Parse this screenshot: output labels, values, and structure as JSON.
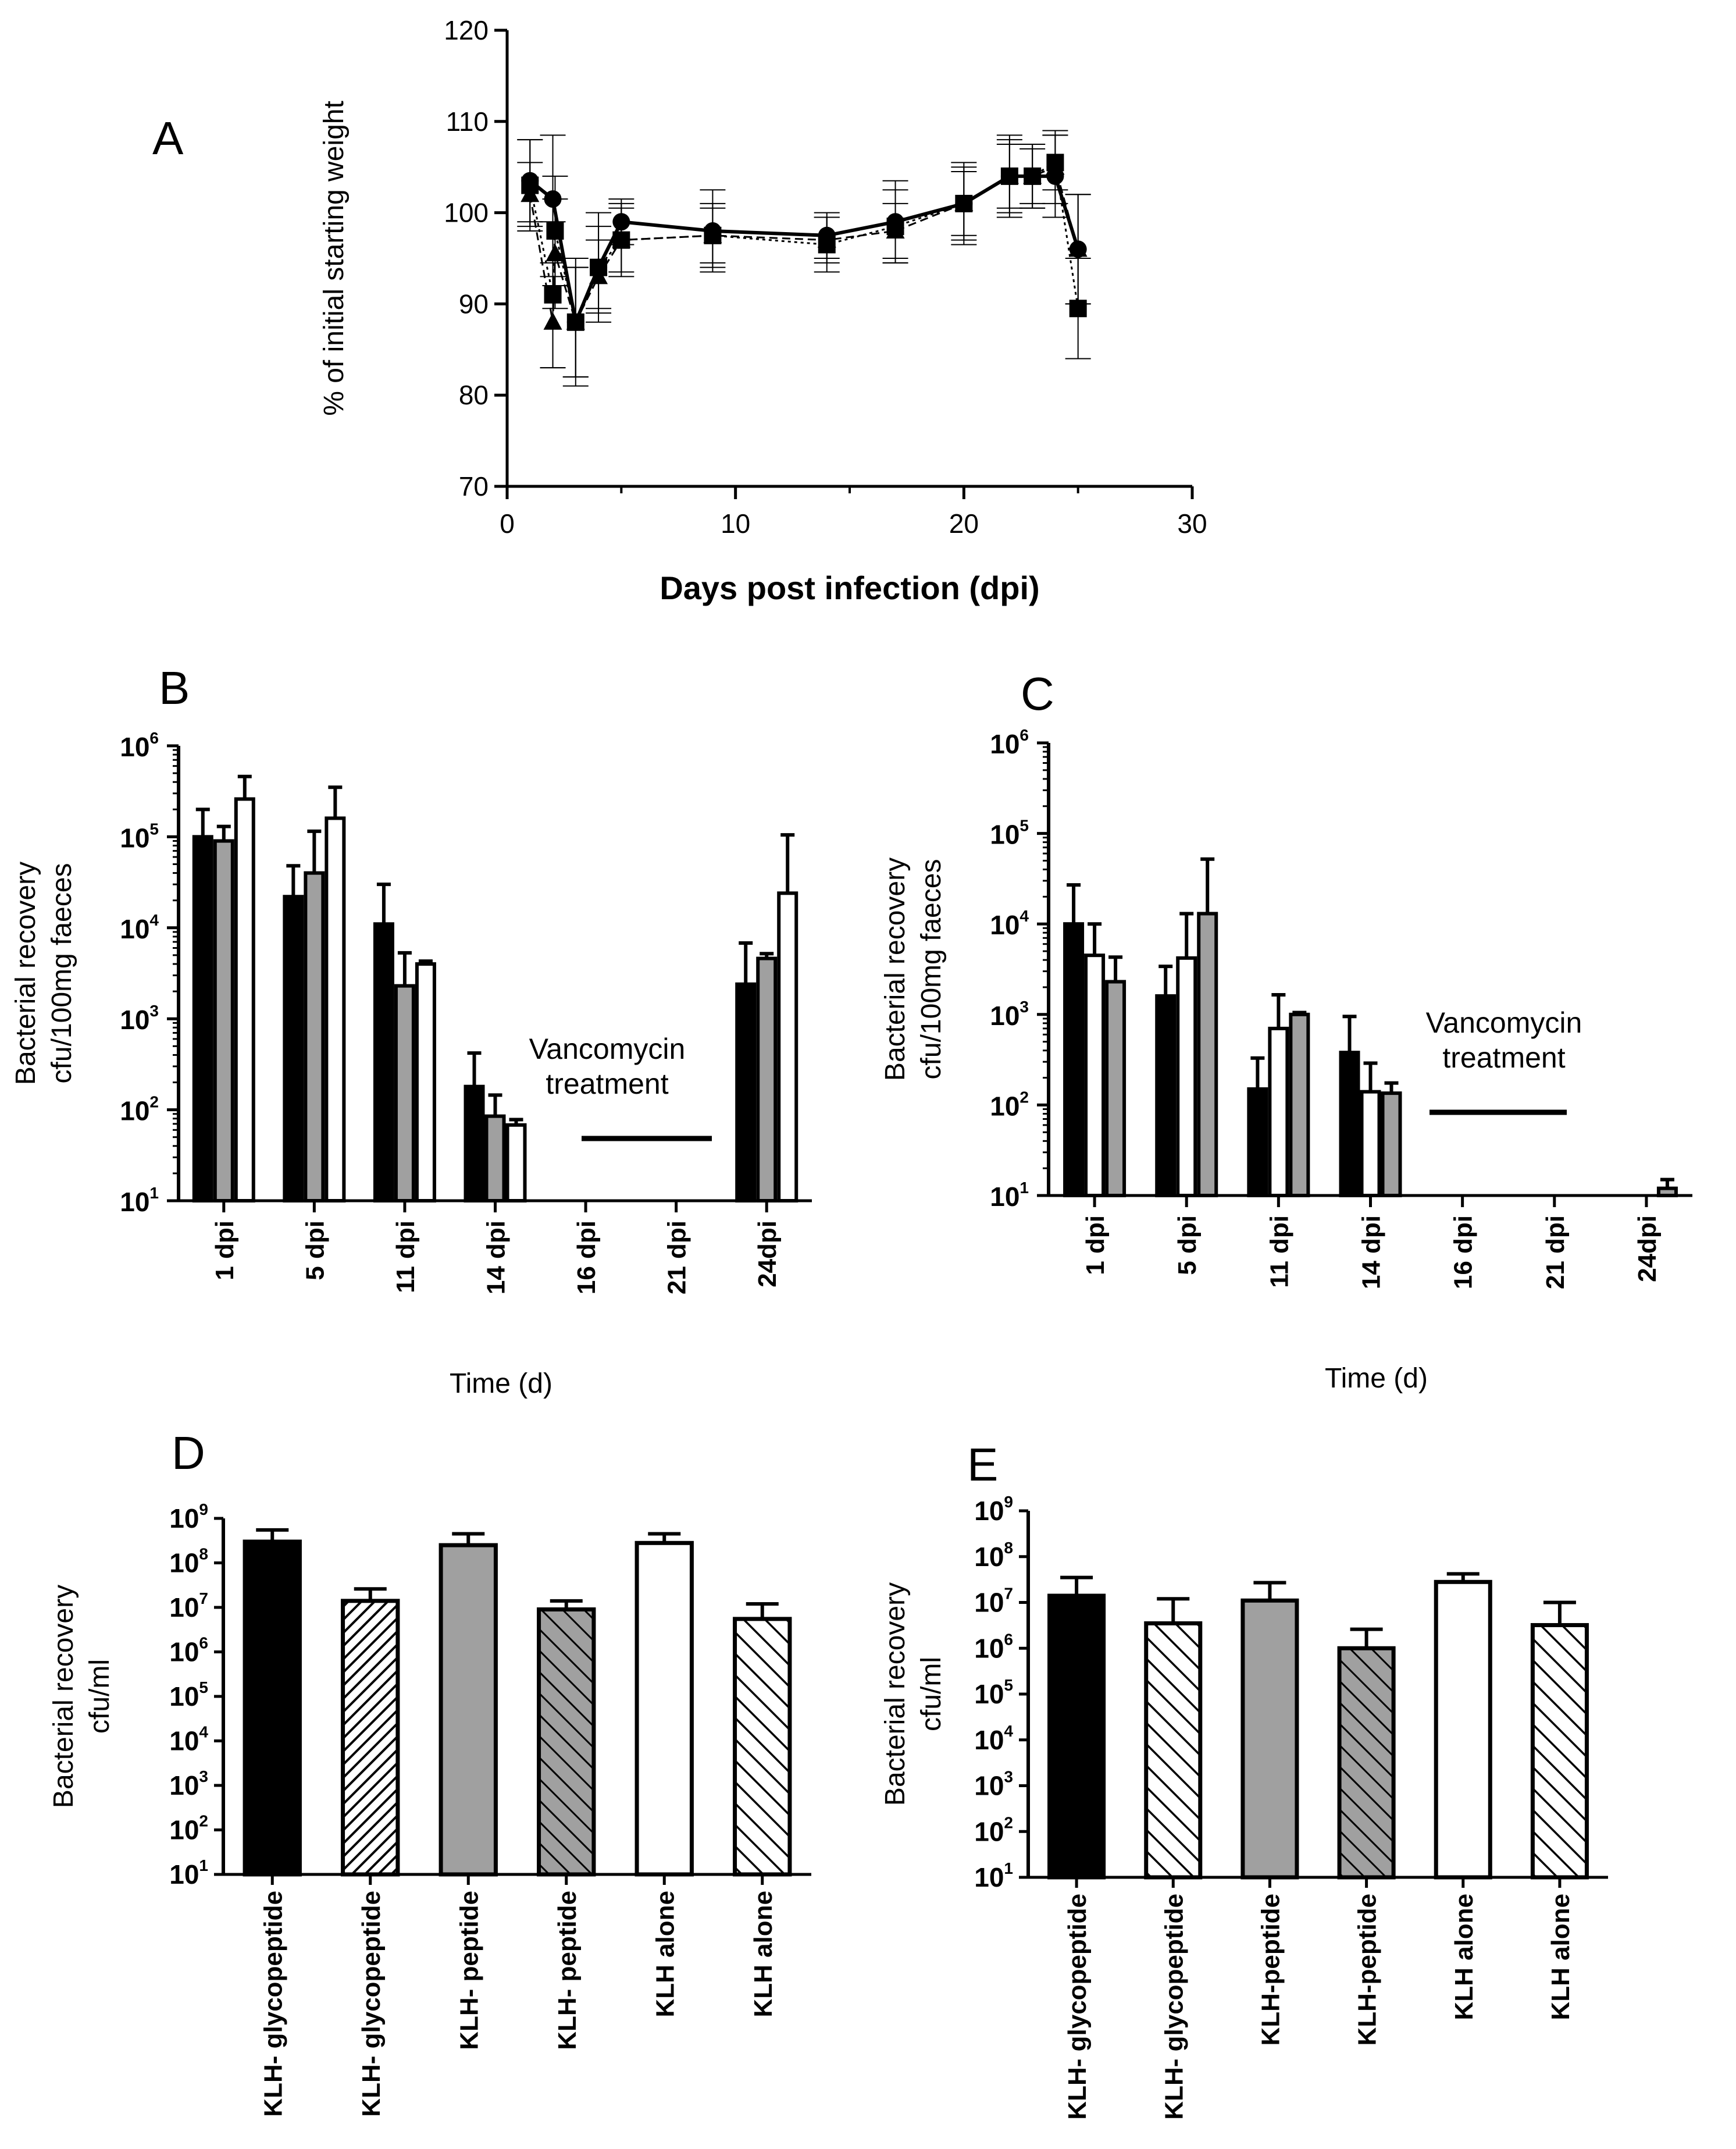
{
  "chart_data": [
    {
      "id": "A",
      "panel_label": "A",
      "type": "line",
      "title": "",
      "xlabel": "Days post infection (dpi)",
      "ylabel": "% of initial starting weight",
      "xlim": [
        0,
        30
      ],
      "ylim": [
        70,
        120
      ],
      "xticks": [
        "0",
        "10",
        "20",
        "30"
      ],
      "yticks": [
        "70",
        "80",
        "90",
        "100",
        "110",
        "120"
      ],
      "series": [
        {
          "name": "circle",
          "marker": "circle",
          "line": "solid",
          "x": [
            1,
            2,
            3,
            4,
            5,
            9,
            14,
            17,
            20,
            22,
            23,
            24,
            25
          ],
          "y": [
            103.5,
            101.5,
            88,
            94,
            99,
            98,
            97.5,
            99,
            101,
            104,
            104,
            104,
            96
          ],
          "err": [
            4.5,
            7,
            6,
            4.5,
            2.5,
            4.5,
            2.5,
            4.5,
            4.5,
            4.5,
            3.5,
            4.5,
            6
          ]
        },
        {
          "name": "triangle",
          "marker": "triangle",
          "line": "dashed",
          "x": [
            1,
            2,
            2.1,
            3,
            4,
            5,
            9,
            14,
            17,
            20,
            22,
            23,
            24,
            25
          ],
          "y": [
            102,
            88,
            95.5,
            88,
            93,
            97,
            97.5,
            97,
            98,
            101,
            104,
            104,
            105,
            96
          ],
          "err": [
            3.5,
            5,
            6,
            6,
            4,
            3.5,
            3,
            2.5,
            3,
            3.5,
            3.5,
            3,
            4,
            6
          ]
        },
        {
          "name": "square",
          "marker": "square",
          "line": "dotted",
          "x": [
            1,
            2,
            2.1,
            3,
            4,
            5,
            9,
            14,
            17,
            20,
            22,
            23,
            24,
            25
          ],
          "y": [
            103,
            91,
            98,
            88,
            94,
            97,
            97.5,
            96.5,
            98.5,
            101,
            104,
            104,
            105.5,
            89.5
          ],
          "err": [
            5,
            8,
            6,
            7,
            6,
            4,
            3.5,
            3,
            4,
            4,
            4,
            3.5,
            3,
            5.5
          ]
        }
      ]
    },
    {
      "id": "B",
      "panel_label": "B",
      "type": "bar",
      "log": true,
      "xlabel": "Time (d)",
      "ylabel_lines": [
        "Bacterial recovery",
        "cfu/100mg faeces"
      ],
      "ylim_exp": [
        1,
        6
      ],
      "ytick_base": "10",
      "ytick_exps": [
        "1",
        "2",
        "3",
        "4",
        "5",
        "6"
      ],
      "categories": [
        "1 dpi",
        "5 dpi",
        "11 dpi",
        "14 dpi",
        "16 dpi",
        "21 dpi",
        "24dpi"
      ],
      "series": [
        {
          "name": "black",
          "fill": "#000000",
          "values": [
            100000,
            22000,
            11000,
            180,
            null,
            null,
            2400
          ],
          "err_top": [
            200000,
            48000,
            30000,
            420,
            null,
            null,
            6800
          ]
        },
        {
          "name": "grey",
          "fill": "#a0a0a0",
          "values": [
            90000,
            40000,
            2300,
            85,
            null,
            null,
            4600
          ],
          "err_top": [
            130000,
            115000,
            5300,
            145,
            null,
            null,
            5200
          ]
        },
        {
          "name": "white",
          "fill": "#ffffff",
          "values": [
            260000,
            160000,
            4000,
            68,
            null,
            null,
            24000
          ],
          "err_top": [
            460000,
            350000,
            4300,
            78,
            null,
            null,
            105000
          ]
        }
      ],
      "annotation": [
        "Vancomycin",
        "treatment"
      ]
    },
    {
      "id": "C",
      "panel_label": "C",
      "type": "bar",
      "log": true,
      "xlabel": "Time (d)",
      "ylabel_lines": [
        "Bacterial recovery",
        "cfu/100mg faeces"
      ],
      "ylim_exp": [
        1,
        6
      ],
      "ytick_base": "10",
      "ytick_exps": [
        "1",
        "2",
        "3",
        "4",
        "5",
        "6"
      ],
      "categories": [
        "1 dpi",
        "5 dpi",
        "11 dpi",
        "14 dpi",
        "16 dpi",
        "21 dpi",
        "24dpi"
      ],
      "series": [
        {
          "name": "black",
          "fill": "#000000",
          "values": [
            10000,
            1600,
            150,
            380,
            null,
            null,
            null
          ],
          "err_top": [
            27000,
            3400,
            330,
            950,
            null,
            null,
            null
          ]
        },
        {
          "name": "white",
          "fill": "#ffffff",
          "values": [
            4500,
            4200,
            700,
            140,
            null,
            null,
            null
          ],
          "err_top": [
            10000,
            13000,
            1650,
            290,
            null,
            null,
            null
          ]
        },
        {
          "name": "grey",
          "fill": "#a0a0a0",
          "values": [
            2300,
            13000,
            1000,
            135,
            null,
            null,
            12
          ],
          "err_top": [
            4300,
            52000,
            1050,
            175,
            null,
            null,
            15
          ]
        }
      ],
      "annotation": [
        "Vancomycin",
        "treatment"
      ]
    },
    {
      "id": "D",
      "panel_label": "D",
      "type": "bar",
      "log": true,
      "xlabel": "",
      "ylabel_lines": [
        "Bacterial recovery",
        "cfu/ml"
      ],
      "ylim_exp": [
        1,
        9
      ],
      "ytick_base": "10",
      "ytick_exps": [
        "1",
        "2",
        "3",
        "4",
        "5",
        "6",
        "7",
        "8",
        "9"
      ],
      "categories": [
        "KLH- glycopeptide",
        "KLH- glycopeptide",
        "KLH- peptide",
        "KLH- peptide",
        "KLH alone",
        "KLH alone"
      ],
      "bars": [
        {
          "value": 300000000,
          "err_top": 550000000,
          "fill": "#000000",
          "pattern": "none"
        },
        {
          "value": 14000000,
          "err_top": 26000000,
          "fill": "#ffffff",
          "pattern": "hatch-dense"
        },
        {
          "value": 250000000,
          "err_top": 450000000,
          "fill": "#a0a0a0",
          "pattern": "none"
        },
        {
          "value": 9000000,
          "err_top": 14000000,
          "fill": "#a0a0a0",
          "pattern": "hatch-back"
        },
        {
          "value": 280000000,
          "err_top": 450000000,
          "fill": "#ffffff",
          "pattern": "none"
        },
        {
          "value": 5500000,
          "err_top": 12000000,
          "fill": "#ffffff",
          "pattern": "hatch-back"
        }
      ]
    },
    {
      "id": "E",
      "panel_label": "E",
      "type": "bar",
      "log": true,
      "xlabel": "",
      "ylabel_lines": [
        "Bacterial recovery",
        "cfu/ml"
      ],
      "ylim_exp": [
        1,
        9
      ],
      "ytick_base": "10",
      "ytick_exps": [
        "1",
        "2",
        "3",
        "4",
        "5",
        "6",
        "7",
        "8",
        "9"
      ],
      "categories": [
        "KLH- glycopeptide",
        "KLH- glycopeptide",
        "KLH-peptide",
        "KLH-peptide",
        "KLH alone",
        "KLH alone"
      ],
      "bars": [
        {
          "value": 14000000,
          "err_top": 35000000,
          "fill": "#000000",
          "pattern": "none"
        },
        {
          "value": 3500000,
          "err_top": 12000000,
          "fill": "#ffffff",
          "pattern": "hatch-back"
        },
        {
          "value": 11000000,
          "err_top": 27000000,
          "fill": "#a0a0a0",
          "pattern": "none"
        },
        {
          "value": 1000000,
          "err_top": 2600000,
          "fill": "#a0a0a0",
          "pattern": "hatch-back"
        },
        {
          "value": 28000000,
          "err_top": 42000000,
          "fill": "#ffffff",
          "pattern": "none"
        },
        {
          "value": 3200000,
          "err_top": 10000000,
          "fill": "#ffffff",
          "pattern": "hatch-back"
        }
      ]
    }
  ]
}
